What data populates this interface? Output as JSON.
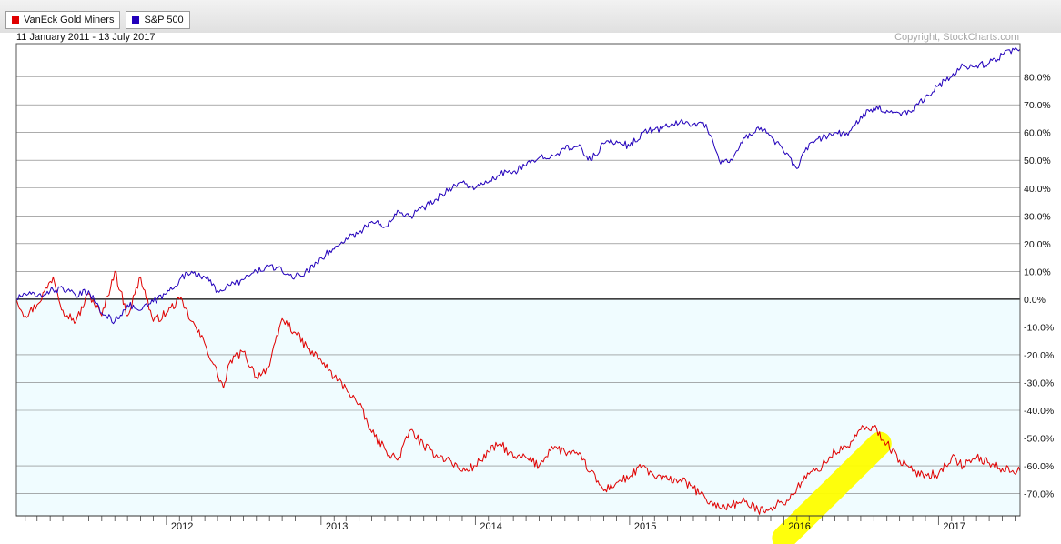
{
  "legend": [
    {
      "label": "VanEck Gold Miners",
      "color": "#e00000"
    },
    {
      "label": "S&P 500",
      "color": "#2200bb"
    }
  ],
  "date_range": "11 January 2011 - 13 July 2017",
  "copyright": "Copyright, StockCharts.com",
  "colors": {
    "plot_bg": "#f0fcff",
    "grid": "#7a7a7a",
    "zero_line": "#000000",
    "highlight": "#ffff00"
  },
  "chart_data": {
    "type": "line",
    "x_range": [
      "2011-01-11",
      "2017-07-13"
    ],
    "ylim": [
      -78,
      92
    ],
    "y_ticks": [
      80,
      70,
      60,
      50,
      40,
      30,
      20,
      10,
      0,
      -10,
      -20,
      -30,
      -40,
      -50,
      -60,
      -70
    ],
    "y_tick_labels": [
      "80.0%",
      "70.0%",
      "60.0%",
      "50.0%",
      "40.0%",
      "30.0%",
      "20.0%",
      "10.0%",
      "0.0%",
      "-10.0%",
      "-20.0%",
      "-30.0%",
      "-40.0%",
      "-50.0%",
      "-60.0%",
      "-70.0%"
    ],
    "x_ticks": [
      {
        "date": "2012-01-01",
        "label": "2012"
      },
      {
        "date": "2013-01-01",
        "label": "2013"
      },
      {
        "date": "2014-01-01",
        "label": "2014"
      },
      {
        "date": "2015-01-01",
        "label": "2015"
      },
      {
        "date": "2016-01-01",
        "label": "2016"
      },
      {
        "date": "2017-01-01",
        "label": "2017"
      }
    ],
    "grid": true,
    "legend_placement": "top-left",
    "series": [
      {
        "name": "VanEck Gold Miners",
        "color": "#e00000",
        "points": [
          [
            "2011-01-11",
            0
          ],
          [
            "2011-02-01",
            -6
          ],
          [
            "2011-03-01",
            -2
          ],
          [
            "2011-04-08",
            8
          ],
          [
            "2011-05-01",
            -4
          ],
          [
            "2011-06-01",
            -8
          ],
          [
            "2011-07-01",
            2
          ],
          [
            "2011-08-01",
            -6
          ],
          [
            "2011-09-01",
            10
          ],
          [
            "2011-10-01",
            -6
          ],
          [
            "2011-11-01",
            8
          ],
          [
            "2011-12-01",
            -8
          ],
          [
            "2012-01-01",
            -5
          ],
          [
            "2012-02-01",
            0
          ],
          [
            "2012-03-01",
            -8
          ],
          [
            "2012-04-01",
            -16
          ],
          [
            "2012-05-15",
            -32
          ],
          [
            "2012-06-01",
            -22
          ],
          [
            "2012-07-01",
            -19
          ],
          [
            "2012-08-01",
            -28
          ],
          [
            "2012-09-01",
            -24
          ],
          [
            "2012-10-01",
            -7
          ],
          [
            "2012-11-01",
            -12
          ],
          [
            "2012-12-01",
            -18
          ],
          [
            "2013-01-01",
            -22
          ],
          [
            "2013-02-01",
            -28
          ],
          [
            "2013-03-01",
            -32
          ],
          [
            "2013-04-01",
            -38
          ],
          [
            "2013-05-01",
            -48
          ],
          [
            "2013-06-01",
            -54
          ],
          [
            "2013-07-01",
            -58
          ],
          [
            "2013-08-01",
            -47
          ],
          [
            "2013-09-01",
            -53
          ],
          [
            "2013-10-01",
            -56
          ],
          [
            "2013-11-01",
            -58
          ],
          [
            "2013-12-01",
            -62
          ],
          [
            "2014-01-01",
            -60
          ],
          [
            "2014-02-01",
            -55
          ],
          [
            "2014-03-01",
            -52
          ],
          [
            "2014-04-01",
            -57
          ],
          [
            "2014-05-01",
            -57
          ],
          [
            "2014-06-01",
            -60
          ],
          [
            "2014-07-01",
            -53
          ],
          [
            "2014-08-01",
            -55
          ],
          [
            "2014-09-01",
            -56
          ],
          [
            "2014-10-01",
            -62
          ],
          [
            "2014-11-01",
            -69
          ],
          [
            "2014-12-01",
            -66
          ],
          [
            "2015-01-01",
            -64
          ],
          [
            "2015-02-01",
            -60
          ],
          [
            "2015-03-01",
            -64
          ],
          [
            "2015-04-01",
            -65
          ],
          [
            "2015-05-01",
            -65
          ],
          [
            "2015-06-01",
            -68
          ],
          [
            "2015-07-01",
            -72
          ],
          [
            "2015-08-01",
            -75
          ],
          [
            "2015-09-01",
            -74
          ],
          [
            "2015-10-01",
            -73
          ],
          [
            "2015-11-01",
            -76
          ],
          [
            "2015-12-01",
            -75
          ],
          [
            "2016-01-15",
            -72
          ],
          [
            "2016-02-01",
            -68
          ],
          [
            "2016-03-01",
            -63
          ],
          [
            "2016-04-01",
            -60
          ],
          [
            "2016-05-01",
            -55
          ],
          [
            "2016-06-01",
            -53
          ],
          [
            "2016-07-01",
            -47
          ],
          [
            "2016-08-01",
            -46
          ],
          [
            "2016-09-01",
            -52
          ],
          [
            "2016-10-01",
            -58
          ],
          [
            "2016-11-01",
            -62
          ],
          [
            "2016-12-01",
            -63
          ],
          [
            "2017-01-01",
            -63
          ],
          [
            "2017-02-01",
            -57
          ],
          [
            "2017-03-01",
            -60
          ],
          [
            "2017-04-01",
            -57
          ],
          [
            "2017-05-01",
            -59
          ],
          [
            "2017-06-01",
            -61
          ],
          [
            "2017-07-13",
            -62
          ]
        ]
      },
      {
        "name": "S&P 500",
        "color": "#2200bb",
        "points": [
          [
            "2011-01-11",
            0
          ],
          [
            "2011-02-01",
            2
          ],
          [
            "2011-03-01",
            1
          ],
          [
            "2011-04-01",
            3
          ],
          [
            "2011-05-01",
            4
          ],
          [
            "2011-06-01",
            1
          ],
          [
            "2011-07-01",
            3
          ],
          [
            "2011-08-01",
            -5
          ],
          [
            "2011-09-01",
            -8
          ],
          [
            "2011-10-01",
            -2
          ],
          [
            "2011-11-01",
            -4
          ],
          [
            "2011-12-01",
            -1
          ],
          [
            "2012-01-01",
            2
          ],
          [
            "2012-02-01",
            7
          ],
          [
            "2012-03-01",
            10
          ],
          [
            "2012-04-01",
            8
          ],
          [
            "2012-05-01",
            3
          ],
          [
            "2012-06-01",
            5
          ],
          [
            "2012-07-01",
            7
          ],
          [
            "2012-08-01",
            10
          ],
          [
            "2012-09-01",
            12
          ],
          [
            "2012-10-01",
            10
          ],
          [
            "2012-11-01",
            8
          ],
          [
            "2012-12-01",
            10
          ],
          [
            "2013-01-01",
            15
          ],
          [
            "2013-02-01",
            18
          ],
          [
            "2013-03-01",
            22
          ],
          [
            "2013-04-01",
            24
          ],
          [
            "2013-05-01",
            28
          ],
          [
            "2013-06-01",
            26
          ],
          [
            "2013-07-01",
            32
          ],
          [
            "2013-08-01",
            30
          ],
          [
            "2013-09-01",
            33
          ],
          [
            "2013-10-01",
            36
          ],
          [
            "2013-11-01",
            40
          ],
          [
            "2013-12-01",
            42
          ],
          [
            "2014-01-01",
            40
          ],
          [
            "2014-02-01",
            42
          ],
          [
            "2014-03-01",
            45
          ],
          [
            "2014-04-01",
            46
          ],
          [
            "2014-05-01",
            48
          ],
          [
            "2014-06-01",
            51
          ],
          [
            "2014-07-01",
            52
          ],
          [
            "2014-08-01",
            54
          ],
          [
            "2014-09-01",
            55
          ],
          [
            "2014-10-01",
            50
          ],
          [
            "2014-11-01",
            56
          ],
          [
            "2014-12-01",
            57
          ],
          [
            "2015-01-01",
            55
          ],
          [
            "2015-02-01",
            60
          ],
          [
            "2015-03-01",
            61
          ],
          [
            "2015-04-01",
            62
          ],
          [
            "2015-05-01",
            64
          ],
          [
            "2015-06-01",
            63
          ],
          [
            "2015-07-01",
            63
          ],
          [
            "2015-08-01",
            50
          ],
          [
            "2015-09-01",
            50
          ],
          [
            "2015-10-01",
            58
          ],
          [
            "2015-11-01",
            62
          ],
          [
            "2015-12-01",
            59
          ],
          [
            "2016-01-01",
            53
          ],
          [
            "2016-02-01",
            47
          ],
          [
            "2016-03-01",
            56
          ],
          [
            "2016-04-01",
            58
          ],
          [
            "2016-05-01",
            60
          ],
          [
            "2016-06-01",
            59
          ],
          [
            "2016-07-01",
            66
          ],
          [
            "2016-08-01",
            69
          ],
          [
            "2016-09-01",
            68
          ],
          [
            "2016-10-01",
            67
          ],
          [
            "2016-11-01",
            68
          ],
          [
            "2016-12-01",
            73
          ],
          [
            "2017-01-01",
            77
          ],
          [
            "2017-02-01",
            80
          ],
          [
            "2017-03-01",
            84
          ],
          [
            "2017-04-01",
            84
          ],
          [
            "2017-05-01",
            85
          ],
          [
            "2017-06-01",
            88
          ],
          [
            "2017-07-13",
            90
          ]
        ]
      }
    ],
    "highlight": {
      "color": "#ffff00",
      "points": [
        [
          "2016-01-01",
          -86
        ],
        [
          "2016-08-15",
          -52
        ]
      ]
    }
  }
}
